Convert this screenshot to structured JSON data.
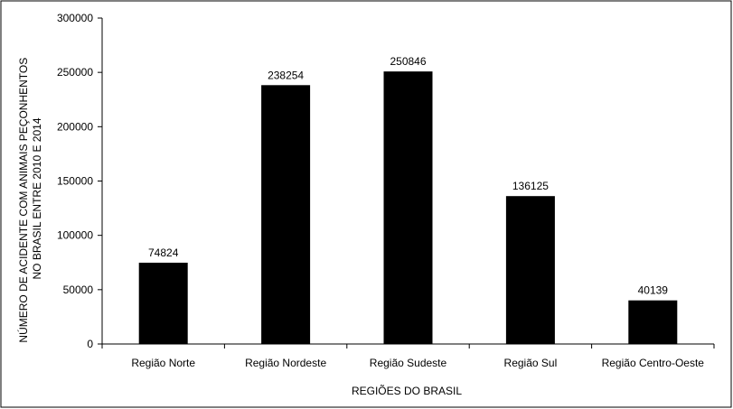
{
  "chart_data": {
    "type": "bar",
    "title": "",
    "xlabel": "REGIÕES DO BRASIL",
    "ylabel_lines": [
      "NÚMERO DE ACIDENTE COM ANIMAIS PEÇONHENTOS",
      "NO BRASIL ENTRE 2010 E 2014"
    ],
    "categories": [
      "Região Norte",
      "Região Nordeste",
      "Região Sudeste",
      "Região Sul",
      "Região Centro-Oeste"
    ],
    "values": [
      74824,
      238254,
      250846,
      136125,
      40139
    ],
    "data_labels": [
      "74824",
      "238254",
      "250846",
      "136125",
      "40139"
    ],
    "yticks": [
      0,
      50000,
      100000,
      150000,
      200000,
      250000,
      300000
    ],
    "ytick_labels": [
      "0",
      "50000",
      "100000",
      "150000",
      "200000",
      "250000",
      "300000"
    ],
    "ylim": [
      0,
      300000
    ],
    "grid": false,
    "legend": "none",
    "bar_color": "#000000"
  }
}
